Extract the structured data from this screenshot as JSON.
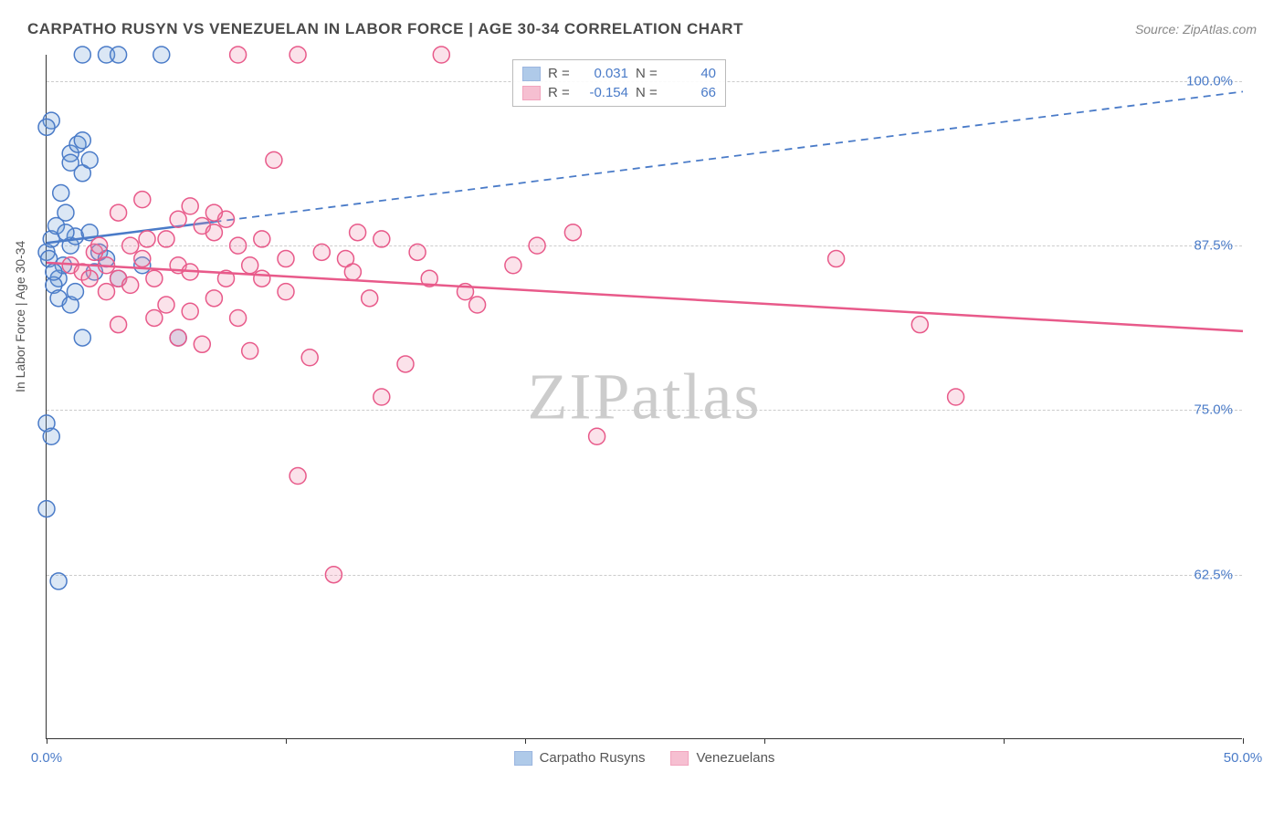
{
  "title": "CARPATHO RUSYN VS VENEZUELAN IN LABOR FORCE | AGE 30-34 CORRELATION CHART",
  "source": "Source: ZipAtlas.com",
  "y_axis_label": "In Labor Force | Age 30-34",
  "watermark": "ZIPatlas",
  "chart": {
    "type": "scatter",
    "xlim": [
      0,
      50
    ],
    "ylim": [
      50,
      102
    ],
    "xticks": [
      {
        "v": 0,
        "label": "0.0%"
      },
      {
        "v": 10,
        "label": ""
      },
      {
        "v": 20,
        "label": ""
      },
      {
        "v": 30,
        "label": ""
      },
      {
        "v": 40,
        "label": ""
      },
      {
        "v": 50,
        "label": "50.0%"
      }
    ],
    "yticks": [
      {
        "v": 62.5,
        "label": "62.5%"
      },
      {
        "v": 75.0,
        "label": "75.0%"
      },
      {
        "v": 87.5,
        "label": "87.5%"
      },
      {
        "v": 100.0,
        "label": "100.0%"
      }
    ],
    "grid_color": "#cccccc",
    "background_color": "#ffffff",
    "marker_radius": 9,
    "marker_fill_opacity": 0.25,
    "marker_stroke_width": 1.5,
    "trend_solid_width": 2.5,
    "trend_dash_pattern": "8,6"
  },
  "series": [
    {
      "name": "Carpatho Rusyns",
      "color": "#6f9fd8",
      "stroke": "#4a7bc8",
      "R": "0.031",
      "N": "40",
      "trend": {
        "x1": 0,
        "y1": 87.7,
        "x2_solid": 7,
        "y2_solid": 89.3,
        "x2": 50,
        "y2": 99.2
      },
      "points": [
        [
          0.0,
          87.0
        ],
        [
          0.1,
          86.5
        ],
        [
          0.2,
          88.0
        ],
        [
          0.5,
          85.0
        ],
        [
          0.3,
          84.5
        ],
        [
          0.0,
          74.0
        ],
        [
          0.2,
          73.0
        ],
        [
          1.5,
          102.0
        ],
        [
          2.5,
          102.0
        ],
        [
          3.0,
          102.0
        ],
        [
          4.8,
          102.0
        ],
        [
          1.0,
          94.5
        ],
        [
          1.3,
          95.2
        ],
        [
          1.5,
          93.0
        ],
        [
          1.0,
          93.8
        ],
        [
          1.8,
          94.0
        ],
        [
          1.5,
          95.5
        ],
        [
          0.6,
          91.5
        ],
        [
          0.8,
          90.0
        ],
        [
          0.4,
          89.0
        ],
        [
          1.0,
          87.5
        ],
        [
          1.2,
          88.2
        ],
        [
          0.2,
          97.0
        ],
        [
          0.0,
          96.5
        ],
        [
          0.5,
          83.5
        ],
        [
          1.0,
          83.0
        ],
        [
          1.5,
          80.5
        ],
        [
          0.0,
          67.5
        ],
        [
          0.5,
          62.0
        ],
        [
          2.2,
          87.0
        ],
        [
          2.5,
          86.5
        ],
        [
          3.0,
          85.0
        ],
        [
          2.0,
          85.5
        ],
        [
          1.8,
          88.5
        ],
        [
          0.7,
          86.0
        ],
        [
          4.0,
          86.0
        ],
        [
          5.5,
          80.5
        ],
        [
          1.2,
          84.0
        ],
        [
          0.3,
          85.5
        ],
        [
          0.8,
          88.5
        ]
      ]
    },
    {
      "name": "Venezuelans",
      "color": "#f08bad",
      "stroke": "#e85a8a",
      "R": "-0.154",
      "N": "66",
      "trend": {
        "x1": 0,
        "y1": 86.2,
        "x2_solid": 50,
        "y2_solid": 81.0,
        "x2": 50,
        "y2": 81.0
      },
      "points": [
        [
          1.0,
          86.0
        ],
        [
          1.5,
          85.5
        ],
        [
          2.0,
          87.0
        ],
        [
          2.5,
          86.0
        ],
        [
          3.0,
          85.0
        ],
        [
          3.5,
          87.5
        ],
        [
          4.0,
          86.5
        ],
        [
          4.5,
          85.0
        ],
        [
          5.0,
          88.0
        ],
        [
          5.5,
          86.0
        ],
        [
          6.0,
          85.5
        ],
        [
          6.5,
          89.0
        ],
        [
          7.0,
          88.5
        ],
        [
          7.5,
          89.5
        ],
        [
          8.0,
          87.5
        ],
        [
          8.5,
          86.0
        ],
        [
          9.0,
          85.0
        ],
        [
          8.0,
          102.0
        ],
        [
          10.5,
          102.0
        ],
        [
          16.5,
          102.0
        ],
        [
          3.0,
          90.0
        ],
        [
          4.0,
          91.0
        ],
        [
          5.5,
          89.5
        ],
        [
          6.0,
          90.5
        ],
        [
          7.0,
          90.0
        ],
        [
          9.5,
          94.0
        ],
        [
          14.0,
          88.0
        ],
        [
          15.5,
          87.0
        ],
        [
          16.0,
          85.0
        ],
        [
          17.5,
          84.0
        ],
        [
          5.0,
          83.0
        ],
        [
          6.0,
          82.5
        ],
        [
          7.0,
          83.5
        ],
        [
          8.0,
          82.0
        ],
        [
          10.0,
          84.0
        ],
        [
          5.5,
          80.5
        ],
        [
          6.5,
          80.0
        ],
        [
          8.5,
          79.5
        ],
        [
          11.0,
          79.0
        ],
        [
          14.0,
          76.0
        ],
        [
          3.0,
          81.5
        ],
        [
          4.5,
          82.0
        ],
        [
          10.5,
          70.0
        ],
        [
          12.0,
          62.5
        ],
        [
          23.0,
          73.0
        ],
        [
          15.0,
          78.5
        ],
        [
          13.5,
          83.5
        ],
        [
          12.5,
          86.5
        ],
        [
          18.0,
          83.0
        ],
        [
          19.5,
          86.0
        ],
        [
          20.5,
          87.5
        ],
        [
          22.0,
          88.5
        ],
        [
          33.0,
          86.5
        ],
        [
          36.5,
          81.5
        ],
        [
          38.0,
          76.0
        ],
        [
          2.5,
          84.0
        ],
        [
          3.5,
          84.5
        ],
        [
          1.8,
          85.0
        ],
        [
          2.2,
          87.5
        ],
        [
          4.2,
          88.0
        ],
        [
          11.5,
          87.0
        ],
        [
          12.8,
          85.5
        ],
        [
          9.0,
          88.0
        ],
        [
          10.0,
          86.5
        ],
        [
          13.0,
          88.5
        ],
        [
          7.5,
          85.0
        ]
      ]
    }
  ],
  "legend_top": {
    "r_label": "R =",
    "n_label": "N ="
  },
  "legend_bottom": [
    {
      "series": 0
    },
    {
      "series": 1
    }
  ]
}
